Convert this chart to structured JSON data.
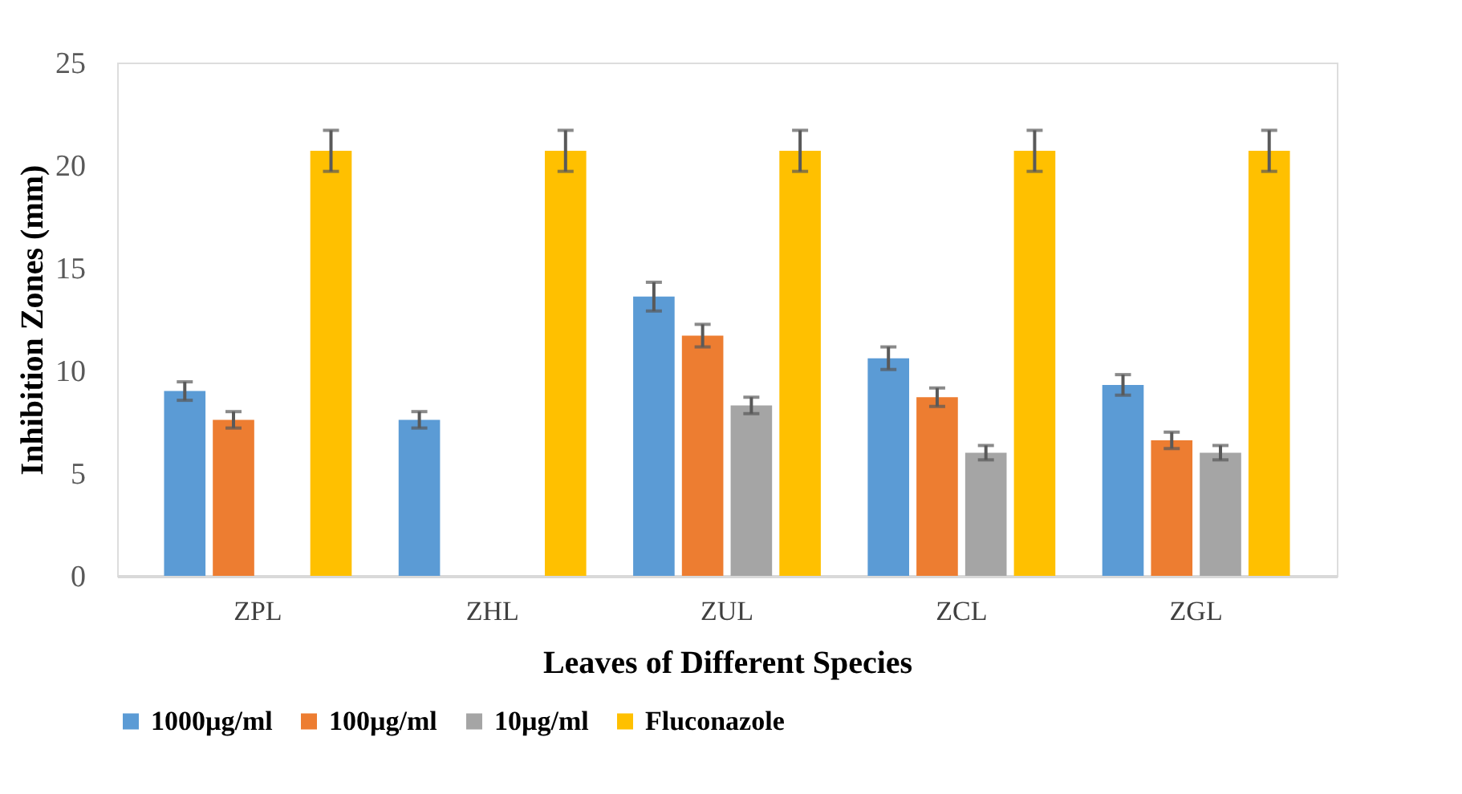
{
  "chart_data": {
    "type": "bar",
    "xlabel": "Leaves of Different Species",
    "ylabel": "Inhibition Zones (mm)",
    "categories": [
      "ZPL",
      "ZHL",
      "ZUL",
      "ZCL",
      "ZGL"
    ],
    "series": [
      {
        "name": "1000µg/ml",
        "color": "#5b9bd5",
        "values": [
          9.0,
          7.6,
          13.6,
          10.6,
          9.3
        ],
        "errors": [
          0.45,
          0.4,
          0.7,
          0.55,
          0.5
        ]
      },
      {
        "name": "100µg/ml",
        "color": "#ed7d31",
        "values": [
          7.6,
          0,
          11.7,
          8.7,
          6.6
        ],
        "errors": [
          0.4,
          null,
          0.55,
          0.45,
          0.4
        ]
      },
      {
        "name": "10µg/ml",
        "color": "#a5a5a5",
        "values": [
          0,
          0,
          8.3,
          6.0,
          6.0
        ],
        "errors": [
          null,
          null,
          0.4,
          0.35,
          0.35
        ]
      },
      {
        "name": "Fluconazole",
        "color": "#ffc000",
        "values": [
          20.7,
          20.7,
          20.7,
          20.7,
          20.7
        ],
        "errors": [
          1.0,
          1.0,
          1.0,
          1.0,
          1.0
        ]
      }
    ],
    "ylim": [
      0,
      25
    ],
    "yticks": [
      0,
      5,
      10,
      15,
      20,
      25
    ],
    "grid": false,
    "legend": "bottom"
  }
}
